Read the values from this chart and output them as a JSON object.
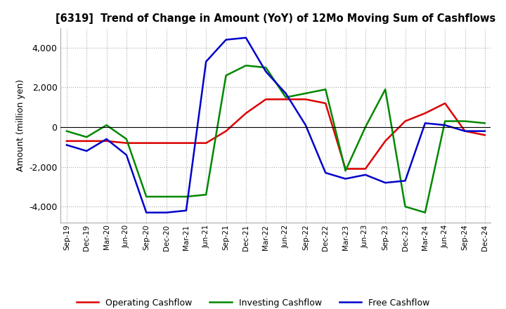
{
  "title": "[6319]  Trend of Change in Amount (YoY) of 12Mo Moving Sum of Cashflows",
  "ylabel": "Amount (million yen)",
  "ylim": [
    -4800,
    5000
  ],
  "yticks": [
    -4000,
    -2000,
    0,
    2000,
    4000
  ],
  "x_labels": [
    "Sep-19",
    "Dec-19",
    "Mar-20",
    "Jun-20",
    "Sep-20",
    "Dec-20",
    "Mar-21",
    "Jun-21",
    "Sep-21",
    "Dec-21",
    "Mar-22",
    "Jun-22",
    "Sep-22",
    "Dec-22",
    "Mar-23",
    "Jun-23",
    "Sep-23",
    "Dec-23",
    "Mar-24",
    "Jun-24",
    "Sep-24",
    "Dec-24"
  ],
  "operating": [
    -700,
    -700,
    -700,
    -800,
    -800,
    -800,
    -800,
    -800,
    -200,
    700,
    1400,
    1400,
    1400,
    1200,
    -2100,
    -2100,
    -700,
    300,
    700,
    1200,
    -200,
    -400
  ],
  "investing": [
    -200,
    -500,
    100,
    -600,
    -3500,
    -3500,
    -3500,
    -3400,
    2600,
    3100,
    3000,
    1500,
    1700,
    1900,
    -2200,
    0,
    1900,
    -4000,
    -4300,
    300,
    300,
    200
  ],
  "free": [
    -900,
    -1200,
    -600,
    -1400,
    -4300,
    -4300,
    -4200,
    3300,
    4400,
    4500,
    2800,
    1700,
    100,
    -2300,
    -2600,
    -2400,
    -2800,
    -2700,
    200,
    100,
    -200,
    -200
  ],
  "operating_color": "#dd0000",
  "investing_color": "#008800",
  "free_color": "#0000cc",
  "legend_labels": [
    "Operating Cashflow",
    "Investing Cashflow",
    "Free Cashflow"
  ],
  "background_color": "#ffffff",
  "grid_color": "#aaaaaa"
}
